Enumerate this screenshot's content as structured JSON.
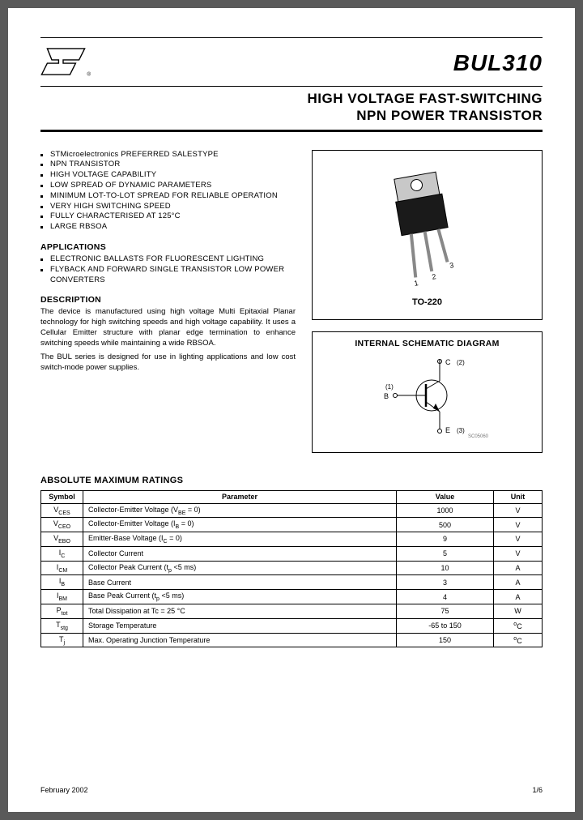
{
  "header": {
    "part_number": "BUL310",
    "subtitle_line1": "HIGH VOLTAGE FAST-SWITCHING",
    "subtitle_line2": "NPN POWER TRANSISTOR"
  },
  "features": [
    "STMicroelectronics PREFERRED SALESTYPE",
    "NPN TRANSISTOR",
    "HIGH VOLTAGE CAPABILITY",
    "LOW SPREAD OF DYNAMIC PARAMETERS",
    "MINIMUM LOT-TO-LOT SPREAD FOR RELIABLE OPERATION",
    "VERY HIGH SWITCHING SPEED",
    "FULLY CHARACTERISED AT 125°C",
    "LARGE RBSOA"
  ],
  "applications": {
    "heading": "APPLICATIONS",
    "items": [
      "ELECTRONIC BALLASTS FOR FLUORESCENT LIGHTING",
      "FLYBACK AND FORWARD SINGLE TRANSISTOR LOW POWER CONVERTERS"
    ]
  },
  "description": {
    "heading": "DESCRIPTION",
    "para1": "The device is manufactured using high voltage Multi Epitaxial Planar technology for high switching speeds and high voltage capability. It uses a Cellular Emitter structure with planar edge termination to enhance switching speeds while maintaining a wide RBSOA.",
    "para2": "The BUL series is designed for use in lighting applications and low cost switch-mode power supplies."
  },
  "package": {
    "label": "TO-220",
    "pins": [
      "1",
      "2",
      "3"
    ],
    "body_color": "#1a1a1a",
    "tab_color": "#c8c8c8"
  },
  "schematic": {
    "title": "INTERNAL SCHEMATIC DIAGRAM",
    "c_label": "C",
    "c_pin": "(2)",
    "b_label": "B",
    "b_pin": "(1)",
    "e_label": "E",
    "e_pin": "(3)",
    "code": "SC05060"
  },
  "ratings": {
    "heading": "ABSOLUTE MAXIMUM RATINGS",
    "columns": [
      "Symbol",
      "Parameter",
      "Value",
      "Unit"
    ],
    "rows": [
      {
        "sym": "V<sub>CES</sub>",
        "param": "Collector-Emitter Voltage (V<sub>BE</sub> = 0)",
        "val": "1000",
        "unit": "V"
      },
      {
        "sym": "V<sub>CEO</sub>",
        "param": "Collector-Emitter Voltage (I<sub>B</sub> = 0)",
        "val": "500",
        "unit": "V"
      },
      {
        "sym": "V<sub>EBO</sub>",
        "param": "Emitter-Base Voltage (I<sub>C</sub> = 0)",
        "val": "9",
        "unit": "V"
      },
      {
        "sym": "I<sub>C</sub>",
        "param": "Collector Current",
        "val": "5",
        "unit": "V"
      },
      {
        "sym": "I<sub>CM</sub>",
        "param": "Collector Peak Current (t<sub>p</sub> <5 ms)",
        "val": "10",
        "unit": "A"
      },
      {
        "sym": "I<sub>B</sub>",
        "param": "Base Current",
        "val": "3",
        "unit": "A"
      },
      {
        "sym": "I<sub>BM</sub>",
        "param": "Base Peak Current (t<sub>p</sub> <5 ms)",
        "val": "4",
        "unit": "A"
      },
      {
        "sym": "P<sub>tot</sub>",
        "param": "Total Dissipation at Tc = 25 °C",
        "val": "75",
        "unit": "W"
      },
      {
        "sym": "T<sub>stg</sub>",
        "param": "Storage Temperature",
        "val": "-65 to 150",
        "unit": "°C"
      },
      {
        "sym": "T<sub>j</sub>",
        "param": "Max. Operating Junction Temperature",
        "val": "150",
        "unit": "°C"
      }
    ]
  },
  "footer": {
    "date": "February 2002",
    "page": "1/6"
  },
  "colors": {
    "page_bg": "#ffffff",
    "outer_bg": "#5a5a5a",
    "text": "#000000"
  }
}
